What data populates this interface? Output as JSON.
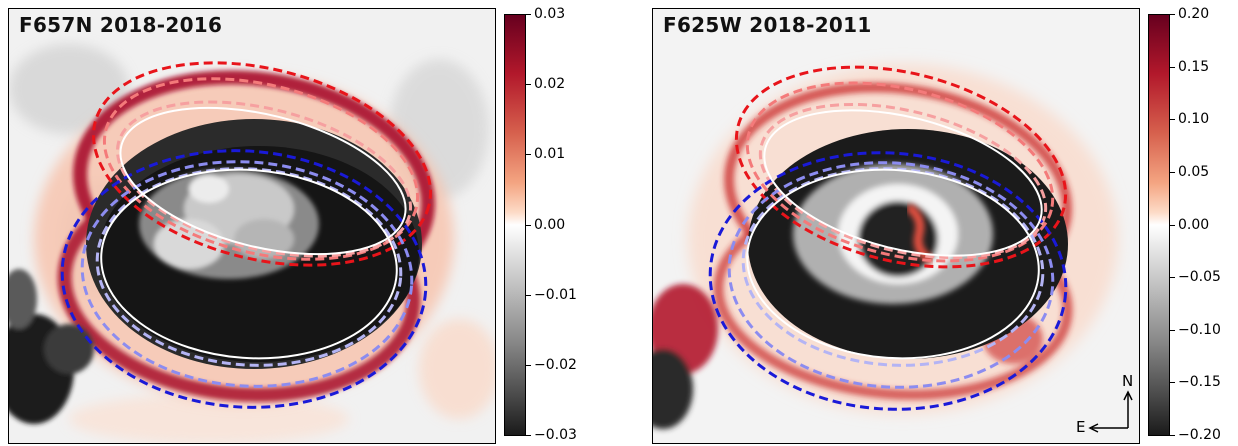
{
  "panels": [
    {
      "title": "F657N 2018-2016",
      "colorbar_ticks": [
        "0.03",
        "0.02",
        "0.01",
        "0.00",
        "−0.01",
        "−0.02",
        "−0.03"
      ]
    },
    {
      "title": "F625W 2018-2011",
      "colorbar_ticks": [
        "0.20",
        "0.15",
        "0.10",
        "0.05",
        "0.00",
        "−0.05",
        "−0.10",
        "−0.15",
        "−0.20"
      ]
    }
  ],
  "compass": {
    "north": "N",
    "east": "E"
  },
  "colors": {
    "red_ellipse": "#e8141a",
    "blue_ellipse": "#1a1ad8",
    "light_red_ellipse": "#f47a7a",
    "light_blue_ellipse": "#8c8cf0"
  }
}
